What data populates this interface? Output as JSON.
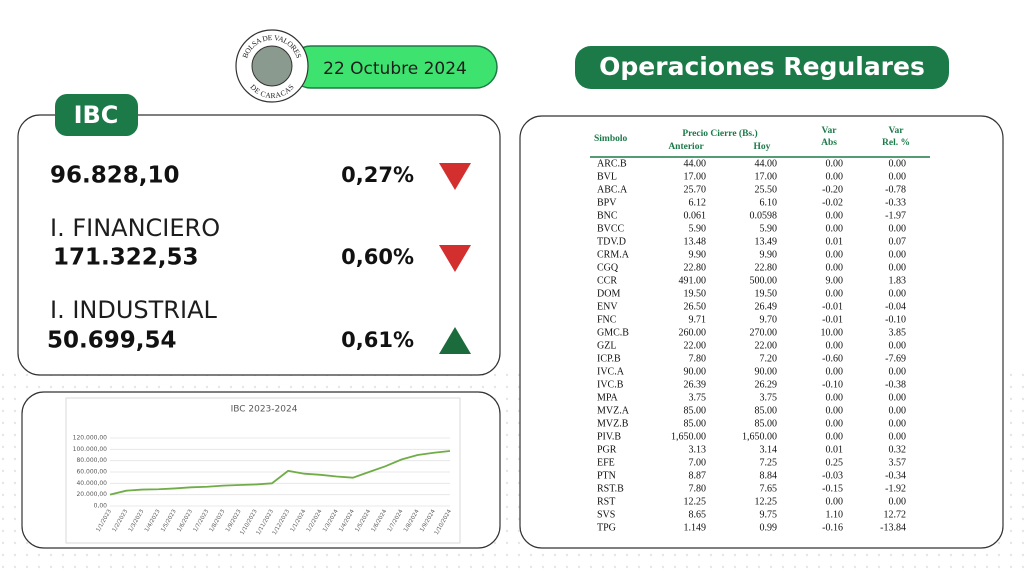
{
  "header": {
    "logo_top": "BOLSA DE VALORES",
    "logo_bottom": "DE CARACAS",
    "date": "22 Octubre 2024",
    "title": "Operaciones Regulares"
  },
  "indices": {
    "tab": "IBC",
    "items": [
      {
        "value": "96.828,10",
        "change": "0,27%",
        "trend": "down"
      },
      {
        "name": "I. FINANCIERO",
        "value": "171.322,53",
        "change": "0,60%",
        "trend": "down"
      },
      {
        "name": "I. INDUSTRIAL",
        "value": "50.699,54",
        "change": "0,61%",
        "trend": "up"
      }
    ]
  },
  "chart_data": {
    "type": "line",
    "title": "IBC 2023-2024",
    "color": "#70ad47",
    "categories": [
      "1/1/2023",
      "1/2/2023",
      "1/3/2023",
      "1/4/2023",
      "1/5/2023",
      "1/6/2023",
      "1/7/2023",
      "1/8/2023",
      "1/9/2023",
      "1/10/2023",
      "1/11/2023",
      "1/12/2023",
      "1/1/2024",
      "1/2/2024",
      "1/3/2024",
      "1/4/2024",
      "1/5/2024",
      "1/6/2024",
      "1/7/2024",
      "1/8/2024",
      "1/9/2024",
      "1/10/2024"
    ],
    "values": [
      20000,
      27000,
      29000,
      29500,
      31000,
      33000,
      34000,
      36000,
      37000,
      38000,
      40000,
      62000,
      57000,
      55000,
      52000,
      50000,
      60000,
      70000,
      82000,
      90000,
      94000,
      97000
    ],
    "ylim": [
      0,
      120000
    ],
    "yticks": [
      {
        "value": 0,
        "label": "0,00"
      },
      {
        "value": 20000,
        "label": "20.000,00"
      },
      {
        "value": 40000,
        "label": "40.000,00"
      },
      {
        "value": 60000,
        "label": "60.000,00"
      },
      {
        "value": 80000,
        "label": "80.000,00"
      },
      {
        "value": 100000,
        "label": "100.000,00"
      },
      {
        "value": 120000,
        "label": "120.000,00"
      }
    ],
    "grid": true
  },
  "table": {
    "header": {
      "symbol": "Simbolo",
      "price": "Precio Cierre (Bs.)",
      "prev": "Anterior",
      "today": "Hoy",
      "var1": "Var",
      "abs": "Abs",
      "var2": "Var",
      "rel": "Rel. %"
    },
    "rows": [
      [
        "ARC.B",
        "44.00",
        "44.00",
        "0.00",
        "0.00"
      ],
      [
        "BVL",
        "17.00",
        "17.00",
        "0.00",
        "0.00"
      ],
      [
        "ABC.A",
        "25.70",
        "25.50",
        "-0.20",
        "-0.78"
      ],
      [
        "BPV",
        "6.12",
        "6.10",
        "-0.02",
        "-0.33"
      ],
      [
        "BNC",
        "0.061",
        "0.0598",
        "0.00",
        "-1.97"
      ],
      [
        "BVCC",
        "5.90",
        "5.90",
        "0.00",
        "0.00"
      ],
      [
        "TDV.D",
        "13.48",
        "13.49",
        "0.01",
        "0.07"
      ],
      [
        "CRM.A",
        "9.90",
        "9.90",
        "0.00",
        "0.00"
      ],
      [
        "CGQ",
        "22.80",
        "22.80",
        "0.00",
        "0.00"
      ],
      [
        "CCR",
        "491.00",
        "500.00",
        "9.00",
        "1.83"
      ],
      [
        "DOM",
        "19.50",
        "19.50",
        "0.00",
        "0.00"
      ],
      [
        "ENV",
        "26.50",
        "26.49",
        "-0.01",
        "-0.04"
      ],
      [
        "FNC",
        "9.71",
        "9.70",
        "-0.01",
        "-0.10"
      ],
      [
        "GMC.B",
        "260.00",
        "270.00",
        "10.00",
        "3.85"
      ],
      [
        "GZL",
        "22.00",
        "22.00",
        "0.00",
        "0.00"
      ],
      [
        "ICP.B",
        "7.80",
        "7.20",
        "-0.60",
        "-7.69"
      ],
      [
        "IVC.A",
        "90.00",
        "90.00",
        "0.00",
        "0.00"
      ],
      [
        "IVC.B",
        "26.39",
        "26.29",
        "-0.10",
        "-0.38"
      ],
      [
        "MPA",
        "3.75",
        "3.75",
        "0.00",
        "0.00"
      ],
      [
        "MVZ.A",
        "85.00",
        "85.00",
        "0.00",
        "0.00"
      ],
      [
        "MVZ.B",
        "85.00",
        "85.00",
        "0.00",
        "0.00"
      ],
      [
        "PIV.B",
        "1,650.00",
        "1,650.00",
        "0.00",
        "0.00"
      ],
      [
        "PGR",
        "3.13",
        "3.14",
        "0.01",
        "0.32"
      ],
      [
        "EFE",
        "7.00",
        "7.25",
        "0.25",
        "3.57"
      ],
      [
        "PTN",
        "8.87",
        "8.84",
        "-0.03",
        "-0.34"
      ],
      [
        "RST.B",
        "7.80",
        "7.65",
        "-0.15",
        "-1.92"
      ],
      [
        "RST",
        "12.25",
        "12.25",
        "0.00",
        "0.00"
      ],
      [
        "SVS",
        "8.65",
        "9.75",
        "1.10",
        "12.72"
      ],
      [
        "TPG",
        "1.149",
        "0.99",
        "-0.16",
        "-13.84"
      ]
    ]
  }
}
